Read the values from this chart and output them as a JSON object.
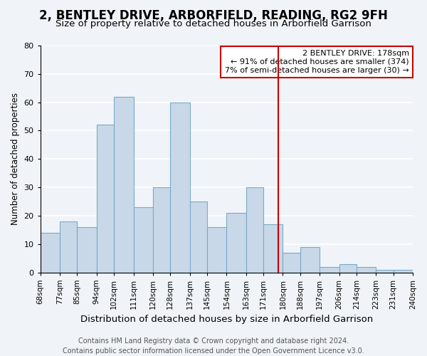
{
  "title": "2, BENTLEY DRIVE, ARBORFIELD, READING, RG2 9FH",
  "subtitle": "Size of property relative to detached houses in Arborfield Garrison",
  "xlabel": "Distribution of detached houses by size in Arborfield Garrison",
  "ylabel": "Number of detached properties",
  "bin_labels": [
    "68sqm",
    "77sqm",
    "85sqm",
    "94sqm",
    "102sqm",
    "111sqm",
    "120sqm",
    "128sqm",
    "137sqm",
    "145sqm",
    "154sqm",
    "163sqm",
    "171sqm",
    "180sqm",
    "188sqm",
    "197sqm",
    "206sqm",
    "214sqm",
    "223sqm",
    "231sqm",
    "240sqm"
  ],
  "bin_edges": [
    68,
    77,
    85,
    94,
    102,
    111,
    120,
    128,
    137,
    145,
    154,
    163,
    171,
    180,
    188,
    197,
    206,
    214,
    223,
    231,
    240
  ],
  "bar_heights": [
    14,
    18,
    16,
    52,
    62,
    23,
    30,
    60,
    25,
    16,
    21,
    30,
    17,
    7,
    9,
    2,
    3,
    2,
    1,
    1
  ],
  "bar_color": "#c8d8e8",
  "bar_edge_color": "#7aaac8",
  "marker_value": 178,
  "marker_color": "#cc0000",
  "ylim": [
    0,
    80
  ],
  "yticks": [
    0,
    10,
    20,
    30,
    40,
    50,
    60,
    70,
    80
  ],
  "annotation_title": "2 BENTLEY DRIVE: 178sqm",
  "annotation_line1": "← 91% of detached houses are smaller (374)",
  "annotation_line2": "7% of semi-detached houses are larger (30) →",
  "annotation_box_color": "#ffffff",
  "annotation_box_edge": "#cc0000",
  "footer_line1": "Contains HM Land Registry data © Crown copyright and database right 2024.",
  "footer_line2": "Contains public sector information licensed under the Open Government Licence v3.0.",
  "background_color": "#f0f4f8",
  "grid_color": "#ffffff",
  "title_fontsize": 12,
  "subtitle_fontsize": 9.5,
  "xlabel_fontsize": 9.5,
  "ylabel_fontsize": 8.5,
  "footer_fontsize": 7.0
}
